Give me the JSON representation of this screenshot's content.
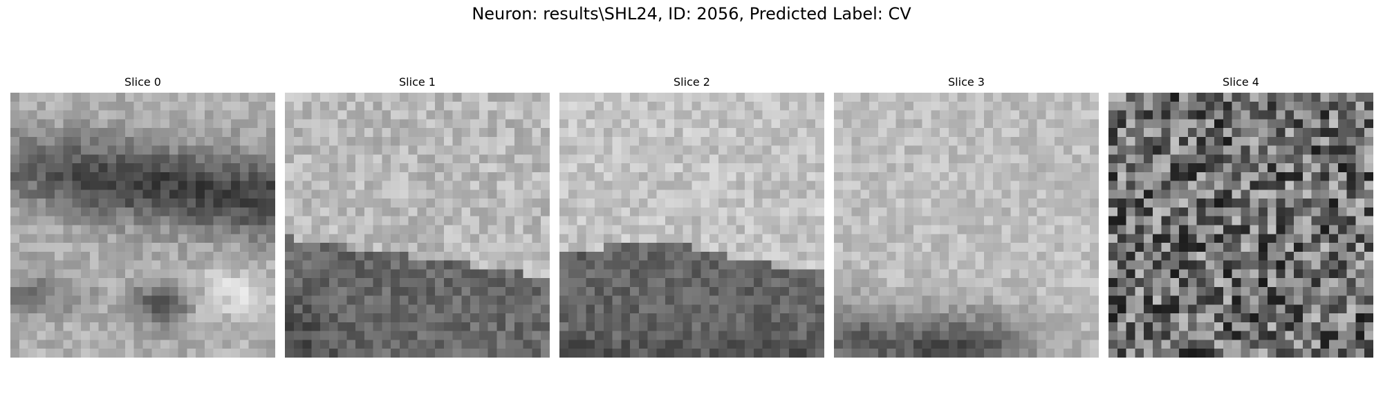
{
  "figure": {
    "title": "Neuron: results\\SHL24, ID: 2056, Predicted Label: CV",
    "colormap": "gray",
    "grid_size": 30,
    "panels": [
      {
        "title": "Slice 0",
        "pattern": "dark-band-upper-and-blob-lower"
      },
      {
        "title": "Slice 1",
        "pattern": "light-top-dark-bottom"
      },
      {
        "title": "Slice 2",
        "pattern": "light-top-dark-bottom"
      },
      {
        "title": "Slice 3",
        "pattern": "light-with-dark-bottom-blob"
      },
      {
        "title": "Slice 4",
        "pattern": "noise"
      }
    ]
  }
}
